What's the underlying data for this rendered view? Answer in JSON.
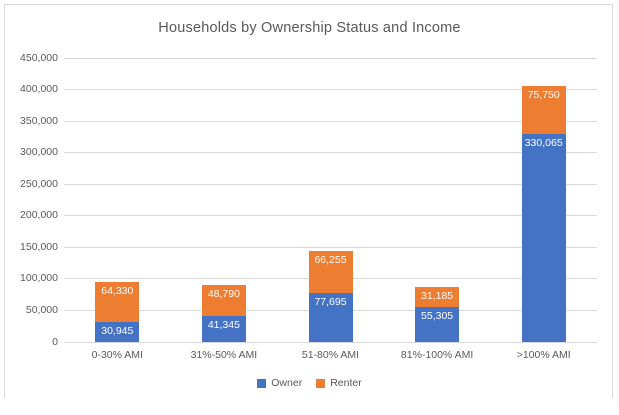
{
  "chart_data": {
    "type": "bar",
    "stacked": true,
    "title": "Households by Ownership Status and Income",
    "categories": [
      "0-30% AMI",
      "31%-50% AMI",
      "51-80% AMI",
      "81%-100% AMI",
      ">100% AMI"
    ],
    "series": [
      {
        "name": "Owner",
        "color": "#4472C4",
        "values": [
          30945,
          41345,
          77695,
          55305,
          330065
        ],
        "labels": [
          "30,945",
          "41,345",
          "77,695",
          "55,305",
          "330,065"
        ]
      },
      {
        "name": "Renter",
        "color": "#ED7D31",
        "values": [
          64330,
          48790,
          66255,
          31185,
          75750
        ],
        "labels": [
          "64,330",
          "48,790",
          "66,255",
          "31,185",
          "75,750"
        ]
      }
    ],
    "xlabel": "",
    "ylabel": "",
    "ylim": [
      0,
      450000
    ],
    "ytick_step": 50000,
    "ytick_labels": [
      "0",
      "50,000",
      "100,000",
      "150,000",
      "200,000",
      "250,000",
      "300,000",
      "350,000",
      "400,000",
      "450,000"
    ],
    "grid": true,
    "data_label_position": "inside-end",
    "legend_position": "bottom",
    "colors": {
      "gridline": "#D9D9D9",
      "axis_line": "#D9D9D9",
      "chart_border": "#D9D9D9",
      "axis_text": "#595959",
      "title_text": "#595959",
      "legend_text": "#595959",
      "data_label_text": "#FFFFFF",
      "background": "#FFFFFF"
    }
  }
}
